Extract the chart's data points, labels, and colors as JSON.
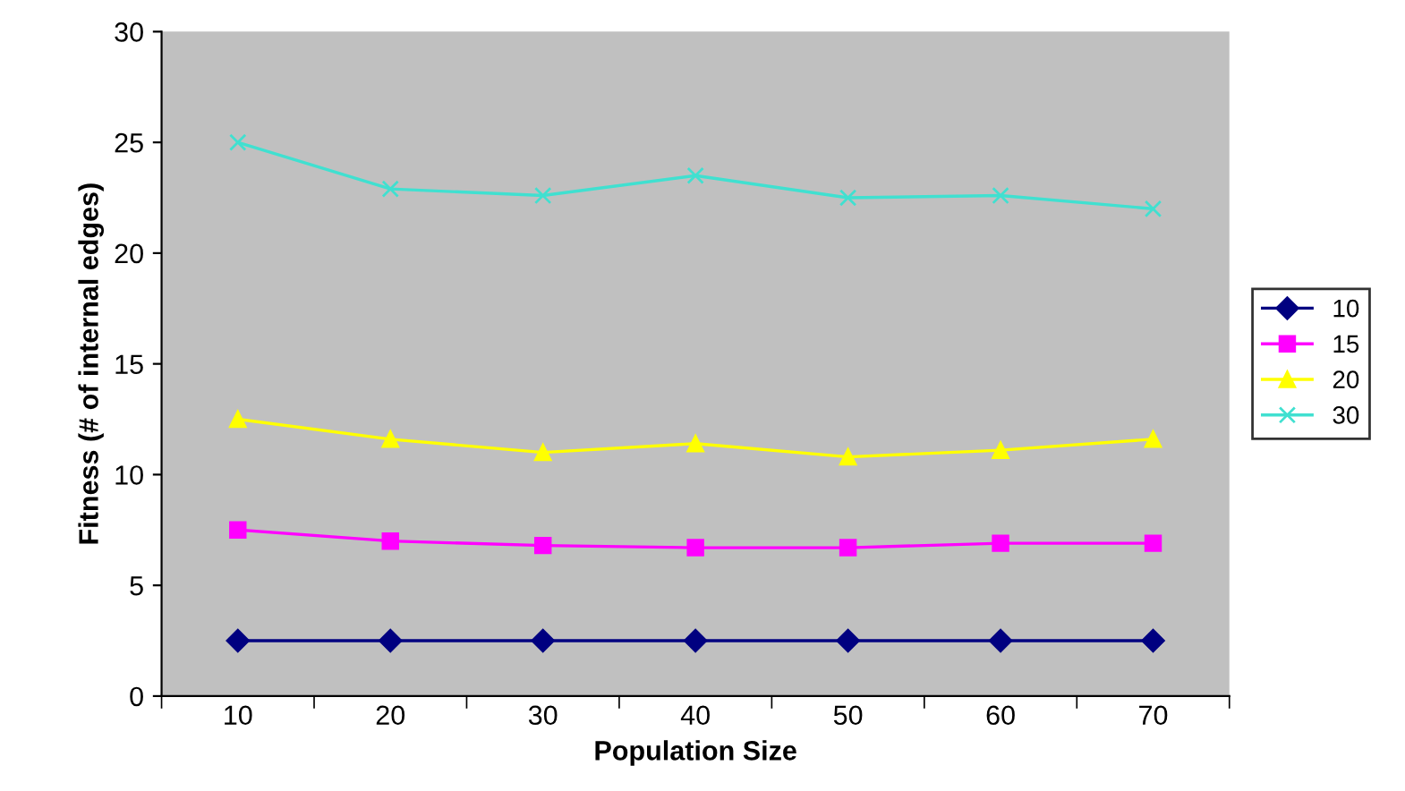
{
  "chart_data": {
    "type": "line",
    "xlabel": "Population Size",
    "ylabel": "Fitness (# of internal edges)",
    "categories": [
      "10",
      "20",
      "30",
      "40",
      "50",
      "60",
      "70"
    ],
    "series": [
      {
        "name": "10",
        "color": "#000080",
        "marker": "diamond",
        "values": [
          2.5,
          2.5,
          2.5,
          2.5,
          2.5,
          2.5,
          2.5
        ]
      },
      {
        "name": "15",
        "color": "#ff00ff",
        "marker": "square",
        "values": [
          7.5,
          7.0,
          6.8,
          6.7,
          6.7,
          6.9,
          6.9
        ]
      },
      {
        "name": "20",
        "color": "#ffff00",
        "marker": "triangle",
        "values": [
          12.5,
          11.6,
          11.0,
          11.4,
          10.8,
          11.1,
          11.6
        ]
      },
      {
        "name": "30",
        "color": "#40e0d0",
        "marker": "cross",
        "values": [
          25.0,
          22.9,
          22.6,
          23.5,
          22.5,
          22.6,
          22.0
        ]
      }
    ],
    "ylim": [
      0,
      30
    ],
    "yticks": [
      0,
      5,
      10,
      15,
      20,
      25,
      30
    ],
    "grid": false,
    "legend": "right"
  }
}
